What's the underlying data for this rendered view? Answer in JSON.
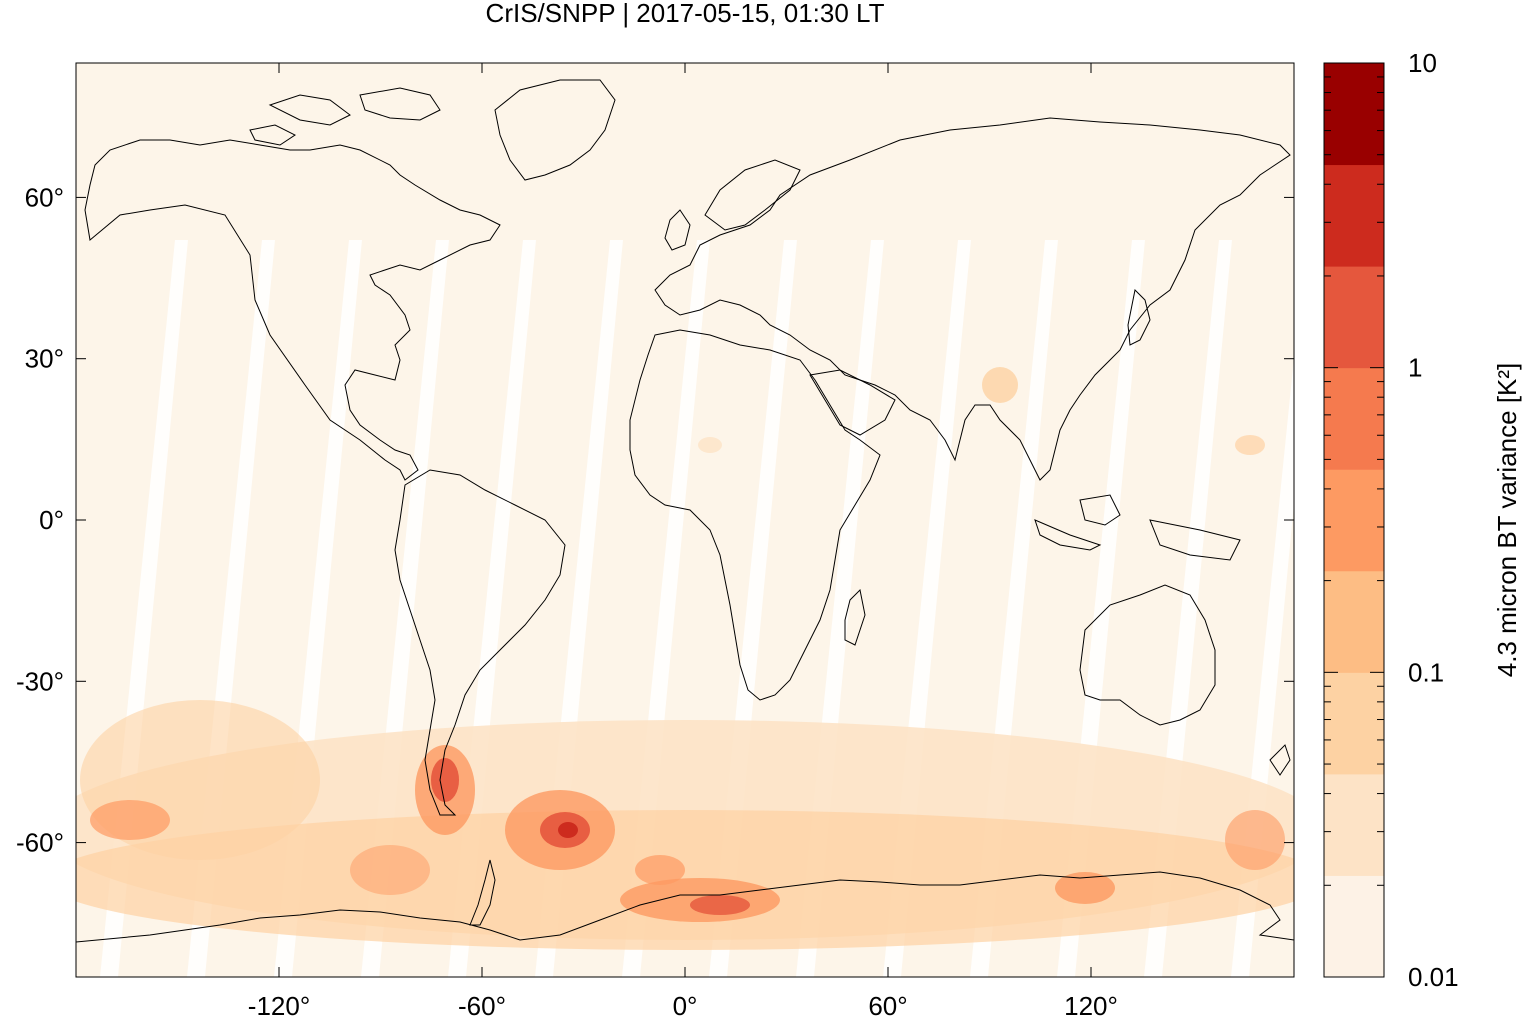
{
  "title": "CrIS/SNPP | 2017-05-15, 01:30 LT",
  "map": {
    "lon_range": [
      -180,
      180
    ],
    "lat_range": [
      -85,
      85
    ],
    "lon_ticks": [
      {
        "value": -120,
        "label": "-120°"
      },
      {
        "value": -60,
        "label": "-60°"
      },
      {
        "value": 0,
        "label": "0°"
      },
      {
        "value": 60,
        "label": "60°"
      },
      {
        "value": 120,
        "label": "120°"
      }
    ],
    "lat_ticks": [
      {
        "value": 60,
        "label": "60°"
      },
      {
        "value": 30,
        "label": "30°"
      },
      {
        "value": 0,
        "label": "0°"
      },
      {
        "value": -30,
        "label": "-30°"
      },
      {
        "value": -60,
        "label": "-60°"
      }
    ],
    "background_color": "#fdf5e9",
    "coastline_color": "#000000"
  },
  "colorbar": {
    "label": "4.3 micron BT variance [K²]",
    "scale": "log",
    "range": [
      0.01,
      10
    ],
    "tick_labels": [
      {
        "value": 10,
        "label": "10"
      },
      {
        "value": 1,
        "label": "1"
      },
      {
        "value": 0.1,
        "label": "0.1"
      },
      {
        "value": 0.01,
        "label": "0.01"
      }
    ],
    "colors": [
      "#fdf2e6",
      "#fde3c6",
      "#fdd2a3",
      "#fdbd84",
      "#fd9a62",
      "#f57a4e",
      "#e5573d",
      "#cd2b1e",
      "#990000"
    ]
  }
}
